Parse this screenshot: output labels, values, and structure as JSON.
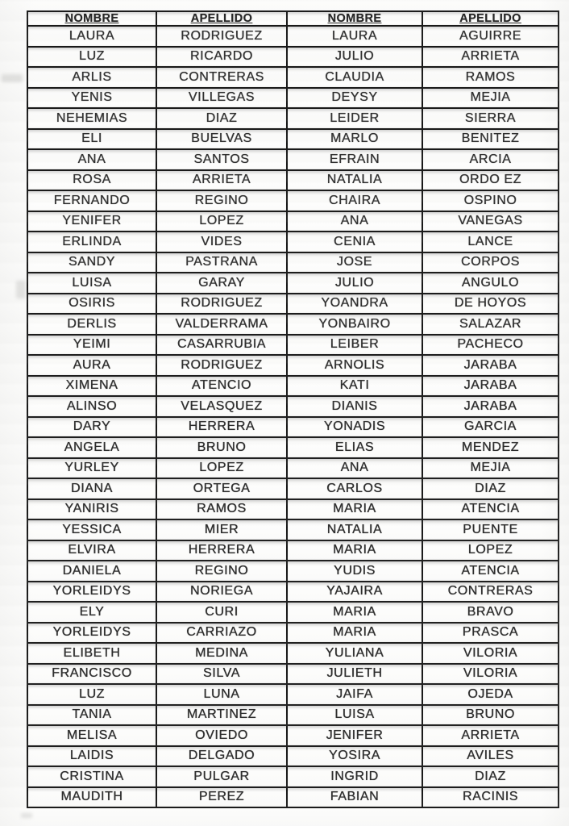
{
  "document": {
    "type": "scanned-name-roster",
    "colors": {
      "page_background": "#fcfcfb",
      "cell_background": "#fdfdfc",
      "border": "#161616",
      "text": "#2a2a2a"
    }
  },
  "table": {
    "headers": [
      "NOMBRE",
      "APELLIDO",
      "NOMBRE",
      "APELLIDO"
    ],
    "rows": [
      [
        "LAURA",
        "RODRIGUEZ",
        "LAURA",
        "AGUIRRE"
      ],
      [
        "LUZ",
        "RICARDO",
        "JULIO",
        "ARRIETA"
      ],
      [
        "ARLIS",
        "CONTRERAS",
        "CLAUDIA",
        "RAMOS"
      ],
      [
        "YENIS",
        "VILLEGAS",
        "DEYSY",
        "MEJIA"
      ],
      [
        "NEHEMIAS",
        "DIAZ",
        "LEIDER",
        "SIERRA"
      ],
      [
        "ELI",
        "BUELVAS",
        "MARLO",
        "BENITEZ"
      ],
      [
        "ANA",
        "SANTOS",
        "EFRAIN",
        "ARCIA"
      ],
      [
        "ROSA",
        "ARRIETA",
        "NATALIA",
        "ORDO EZ"
      ],
      [
        "FERNANDO",
        "REGINO",
        "CHAIRA",
        "OSPINO"
      ],
      [
        "YENIFER",
        "LOPEZ",
        "ANA",
        "VANEGAS"
      ],
      [
        "ERLINDA",
        "VIDES",
        "CENIA",
        "LANCE"
      ],
      [
        "SANDY",
        "PASTRANA",
        "JOSE",
        "CORPOS"
      ],
      [
        "LUISA",
        "GARAY",
        "JULIO",
        "ANGULO"
      ],
      [
        "OSIRIS",
        "RODRIGUEZ",
        "YOANDRA",
        "DE HOYOS"
      ],
      [
        "DERLIS",
        "VALDERRAMA",
        "YONBAIRO",
        "SALAZAR"
      ],
      [
        "YEIMI",
        "CASARRUBIA",
        "LEIBER",
        "PACHECO"
      ],
      [
        "AURA",
        "RODRIGUEZ",
        "ARNOLIS",
        "JARABA"
      ],
      [
        "XIMENA",
        "ATENCIO",
        "KATI",
        "JARABA"
      ],
      [
        "ALINSO",
        "VELASQUEZ",
        "DIANIS",
        "JARABA"
      ],
      [
        "DARY",
        "HERRERA",
        "YONADIS",
        "GARCIA"
      ],
      [
        "ANGELA",
        "BRUNO",
        "ELIAS",
        "MENDEZ"
      ],
      [
        "YURLEY",
        "LOPEZ",
        "ANA",
        "MEJIA"
      ],
      [
        "DIANA",
        "ORTEGA",
        "CARLOS",
        "DIAZ"
      ],
      [
        "YANIRIS",
        "RAMOS",
        "MARIA",
        "ATENCIA"
      ],
      [
        "YESSICA",
        "MIER",
        "NATALIA",
        "PUENTE"
      ],
      [
        "ELVIRA",
        "HERRERA",
        "MARIA",
        "LOPEZ"
      ],
      [
        "DANIELA",
        "REGINO",
        "YUDIS",
        "ATENCIA"
      ],
      [
        "YORLEIDYS",
        "NORIEGA",
        "YAJAIRA",
        "CONTRERAS"
      ],
      [
        "ELY",
        "CURI",
        "MARIA",
        "BRAVO"
      ],
      [
        "YORLEIDYS",
        "CARRIAZO",
        "MARIA",
        "PRASCA"
      ],
      [
        "ELIBETH",
        "MEDINA",
        "YULIANA",
        "VILORIA"
      ],
      [
        "FRANCISCO",
        "SILVA",
        "JULIETH",
        "VILORIA"
      ],
      [
        "LUZ",
        "LUNA",
        "JAIFA",
        "OJEDA"
      ],
      [
        "TANIA",
        "MARTINEZ",
        "LUISA",
        "BRUNO"
      ],
      [
        "MELISA",
        "OVIEDO",
        "JENIFER",
        "ARRIETA"
      ],
      [
        "LAIDIS",
        "DELGADO",
        "YOSIRA",
        "AVILES"
      ],
      [
        "CRISTINA",
        "PULGAR",
        "INGRID",
        "DIAZ"
      ],
      [
        "MAUDITH",
        "PEREZ",
        "FABIAN",
        "RACINIS"
      ]
    ]
  }
}
